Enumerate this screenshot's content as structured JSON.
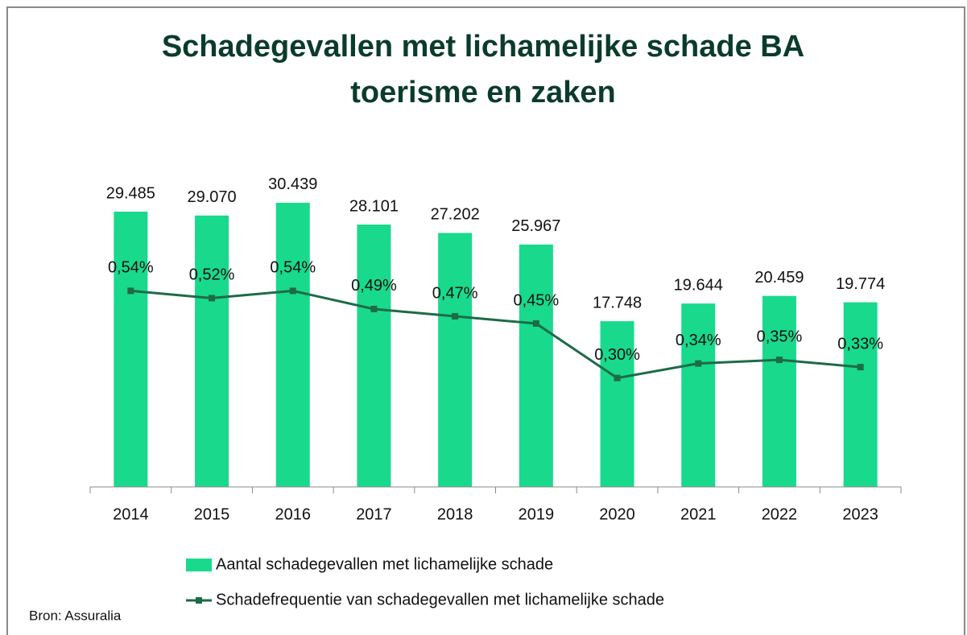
{
  "chart_data": {
    "type": "bar-line",
    "title": "Schadegevallen met lichamelijke schade BA toerisme en zaken",
    "categories": [
      "2014",
      "2015",
      "2016",
      "2017",
      "2018",
      "2019",
      "2020",
      "2021",
      "2022",
      "2023"
    ],
    "series": [
      {
        "name": "Aantal schadegevallen met lichamelijke schade",
        "type": "bar",
        "color": "#19d98c",
        "values": [
          29485,
          29070,
          30439,
          28101,
          27202,
          25967,
          17748,
          19644,
          20459,
          19774
        ],
        "value_labels": [
          "29.485",
          "29.070",
          "30.439",
          "28.101",
          "27.202",
          "25.967",
          "17.748",
          "19.644",
          "20.459",
          "19.774"
        ]
      },
      {
        "name": "Schadefrequentie van schadegevallen met lichamelijke schade",
        "type": "line",
        "axis": "y2",
        "color": "#1d6b47",
        "values": [
          0.54,
          0.52,
          0.54,
          0.49,
          0.47,
          0.45,
          0.3,
          0.34,
          0.35,
          0.33
        ],
        "value_labels": [
          "0,54%",
          "0,52%",
          "0,54%",
          "0,49%",
          "0,47%",
          "0,45%",
          "0,30%",
          "0,34%",
          "0,35%",
          "0,33%"
        ]
      }
    ],
    "ylim": [
      0,
      35000
    ],
    "y2lim": [
      0,
      0.9
    ],
    "source": "Bron: Assuralia"
  }
}
